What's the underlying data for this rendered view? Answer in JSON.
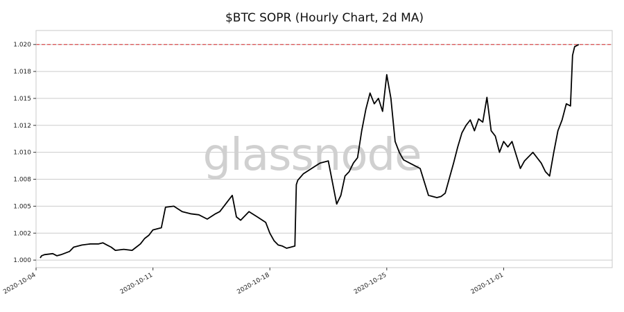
{
  "chart_data": {
    "type": "line",
    "title": "$BTC SOPR (Hourly Chart, 2d MA)",
    "watermark": "glassnode",
    "xlabel": "",
    "ylabel": "",
    "xlim": [
      "2020-10-04T00:00",
      "2020-11-07T12:00"
    ],
    "ylim": [
      0.9993,
      1.0213
    ],
    "yticks": [
      1.0,
      1.0025,
      1.005,
      1.0075,
      1.01,
      1.0125,
      1.015,
      1.0175,
      1.02
    ],
    "ytick_labels": [
      "1.000",
      "1.002",
      "1.005",
      "1.008",
      "1.010",
      "1.012",
      "1.015",
      "1.018",
      "1.020"
    ],
    "xticks": [
      "2020-10-04",
      "2020-10-11",
      "2020-10-18",
      "2020-10-25",
      "2020-11-01"
    ],
    "grid": "horizontal",
    "colors": {
      "line": "#000000",
      "reference": "#d62728",
      "grid": "#cccccc",
      "watermark": "#d0d0d0"
    },
    "reference_line": {
      "y": 1.02,
      "style": "dashed"
    },
    "series": [
      {
        "x": [
          "2020-10-04T06:00",
          "2020-10-04T08:00",
          "2020-10-04T12:00",
          "2020-10-05T00:00",
          "2020-10-05T06:00",
          "2020-10-05T12:00",
          "2020-10-06T00:00",
          "2020-10-06T06:00",
          "2020-10-06T18:00",
          "2020-10-07T06:00",
          "2020-10-07T18:00",
          "2020-10-08T00:00",
          "2020-10-08T06:00",
          "2020-10-08T12:00",
          "2020-10-08T18:00",
          "2020-10-09T06:00",
          "2020-10-09T18:00",
          "2020-10-10T00:00",
          "2020-10-10T06:00",
          "2020-10-10T12:00",
          "2020-10-10T18:00",
          "2020-10-11T00:00",
          "2020-10-11T12:00",
          "2020-10-11T18:00",
          "2020-10-12T06:00",
          "2020-10-12T18:00",
          "2020-10-13T06:00",
          "2020-10-13T18:00",
          "2020-10-14T06:00",
          "2020-10-14T18:00",
          "2020-10-15T00:00",
          "2020-10-15T06:00",
          "2020-10-15T12:00",
          "2020-10-15T18:00",
          "2020-10-16T00:00",
          "2020-10-16T06:00",
          "2020-10-16T18:00",
          "2020-10-17T06:00",
          "2020-10-17T18:00",
          "2020-10-18T00:00",
          "2020-10-18T06:00",
          "2020-10-18T12:00",
          "2020-10-18T18:00",
          "2020-10-19T00:00",
          "2020-10-19T06:00",
          "2020-10-19T12:00",
          "2020-10-19T14:00",
          "2020-10-19T16:00",
          "2020-10-20T00:00",
          "2020-10-20T12:00",
          "2020-10-21T00:00",
          "2020-10-21T12:00",
          "2020-10-22T00:00",
          "2020-10-22T06:00",
          "2020-10-22T12:00",
          "2020-10-22T18:00",
          "2020-10-23T00:00",
          "2020-10-23T06:00",
          "2020-10-23T12:00",
          "2020-10-23T18:00",
          "2020-10-24T00:00",
          "2020-10-24T06:00",
          "2020-10-24T12:00",
          "2020-10-24T18:00",
          "2020-10-25T00:00",
          "2020-10-25T06:00",
          "2020-10-25T12:00",
          "2020-10-25T18:00",
          "2020-10-26T00:00",
          "2020-10-26T12:00",
          "2020-10-27T00:00",
          "2020-10-27T12:00",
          "2020-10-28T00:00",
          "2020-10-28T06:00",
          "2020-10-28T12:00",
          "2020-10-29T00:00",
          "2020-10-29T06:00",
          "2020-10-29T12:00",
          "2020-10-29T18:00",
          "2020-10-30T00:00",
          "2020-10-30T06:00",
          "2020-10-30T12:00",
          "2020-10-30T18:00",
          "2020-10-31T00:00",
          "2020-10-31T06:00",
          "2020-10-31T12:00",
          "2020-10-31T18:00",
          "2020-11-01T00:00",
          "2020-11-01T06:00",
          "2020-11-01T12:00",
          "2020-11-02T00:00",
          "2020-11-02T06:00",
          "2020-11-02T12:00",
          "2020-11-02T18:00",
          "2020-11-03T00:00",
          "2020-11-03T06:00",
          "2020-11-03T12:00",
          "2020-11-03T18:00",
          "2020-11-04T00:00",
          "2020-11-04T06:00",
          "2020-11-04T12:00",
          "2020-11-04T18:00",
          "2020-11-05T00:00",
          "2020-11-05T03:00",
          "2020-11-05T06:00",
          "2020-11-05T12:00"
        ],
        "values": [
          1.0002,
          1.0004,
          1.0005,
          1.0006,
          1.0004,
          1.0005,
          1.0008,
          1.0012,
          1.0014,
          1.0015,
          1.0015,
          1.0016,
          1.0014,
          1.0012,
          1.0009,
          1.001,
          1.0009,
          1.0012,
          1.0015,
          1.002,
          1.0023,
          1.0028,
          1.003,
          1.0049,
          1.005,
          1.0045,
          1.0043,
          1.0042,
          1.0038,
          1.0043,
          1.0045,
          1.005,
          1.0055,
          1.006,
          1.004,
          1.0037,
          1.0045,
          1.004,
          1.0035,
          1.0025,
          1.0018,
          1.0014,
          1.0013,
          1.0011,
          1.0012,
          1.0013,
          1.007,
          1.0074,
          1.008,
          1.0085,
          1.009,
          1.0092,
          1.0052,
          1.006,
          1.0078,
          1.0082,
          1.009,
          1.0095,
          1.012,
          1.014,
          1.0155,
          1.0145,
          1.015,
          1.0138,
          1.0172,
          1.015,
          1.011,
          1.01,
          1.0093,
          1.0089,
          1.0085,
          1.006,
          1.0058,
          1.0059,
          1.0062,
          1.009,
          1.0105,
          1.0118,
          1.0125,
          1.013,
          1.012,
          1.0131,
          1.0128,
          1.0151,
          1.012,
          1.0115,
          1.01,
          1.011,
          1.0105,
          1.011,
          1.0085,
          1.0092,
          1.0096,
          1.01,
          1.0095,
          1.009,
          1.0082,
          1.0078,
          1.01,
          1.012,
          1.013,
          1.0145,
          1.0143,
          1.019,
          1.0198,
          1.02
        ]
      }
    ]
  }
}
